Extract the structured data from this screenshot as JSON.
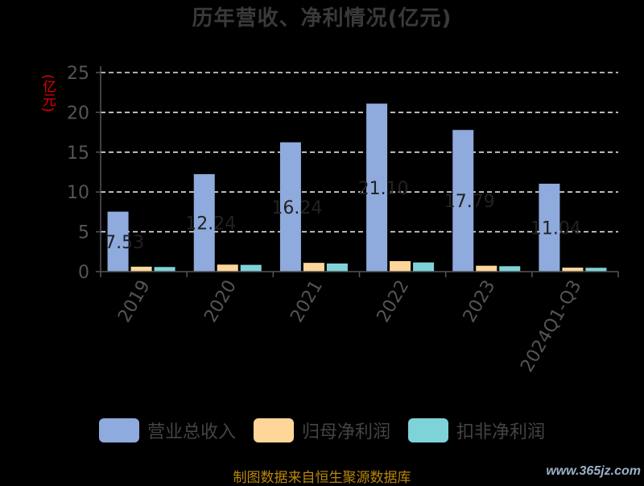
{
  "title": "历年营收、净利情况(亿元)",
  "y_axis_label": "(亿元)",
  "source_text": "制图数据来自恒生聚源数据库",
  "watermark": "www.365jz.com",
  "colors": {
    "revenue": "#8faadc",
    "net_profit": "#ffd699",
    "deducted_profit": "#7ed3d8",
    "axis": "#555555",
    "grid": "#e6e6e6",
    "label": "#222222"
  },
  "chart_data": {
    "type": "bar",
    "categories": [
      "2019",
      "2020",
      "2021",
      "2022",
      "2023",
      "2024Q1-Q3"
    ],
    "series": [
      {
        "name": "营业总收入",
        "values": [
          7.53,
          12.24,
          16.24,
          21.1,
          17.79,
          11.04
        ]
      },
      {
        "name": "归母净利润",
        "values": [
          0.62,
          0.88,
          1.1,
          1.32,
          0.74,
          0.5
        ]
      },
      {
        "name": "扣非净利润",
        "values": [
          0.58,
          0.85,
          1.02,
          1.15,
          0.68,
          0.48
        ]
      }
    ],
    "data_labels": [
      "7.53",
      "12.24",
      "16.24",
      "21.10",
      "17.79",
      "11.04"
    ],
    "ylim": [
      0,
      25
    ],
    "yticks": [
      0,
      5,
      10,
      15,
      20,
      25
    ],
    "grid": "dashed-horizontal",
    "legend_position": "bottom"
  }
}
